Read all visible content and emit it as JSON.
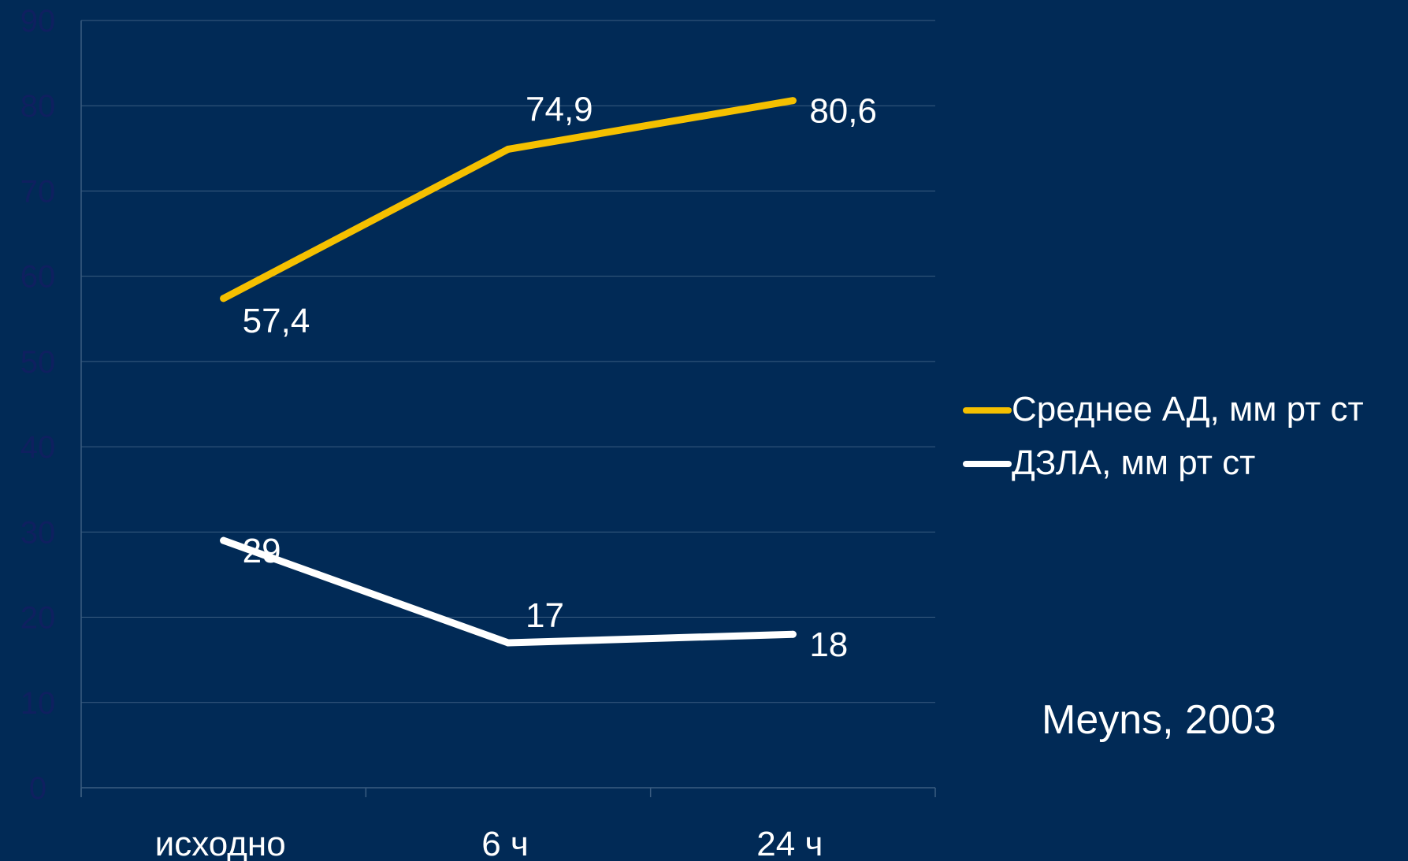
{
  "source_note": "Meyns, 2003",
  "chart_data": {
    "type": "line",
    "title": "",
    "xlabel": "",
    "ylabel": "",
    "categories": [
      "исходно",
      "6 ч",
      "24 ч"
    ],
    "ylim": [
      0,
      90
    ],
    "yticks": [
      0,
      10,
      20,
      30,
      40,
      50,
      60,
      70,
      80,
      90
    ],
    "grid": true,
    "legend_position": "right",
    "series": [
      {
        "name": "Среднее АД, мм рт ст",
        "values": [
          57.4,
          74.9,
          80.6
        ],
        "labels": [
          "57,4",
          "74,9",
          "80,6"
        ],
        "color": "#F5C000"
      },
      {
        "name": "ДЗЛА, мм рт ст",
        "values": [
          29,
          17,
          18
        ],
        "labels": [
          "29",
          "17",
          "18"
        ],
        "color": "#FFFFFF"
      }
    ]
  },
  "colors": {
    "background": "#012A56",
    "grid": "#3A5C80",
    "axis_tick_text": "#0F2060"
  }
}
